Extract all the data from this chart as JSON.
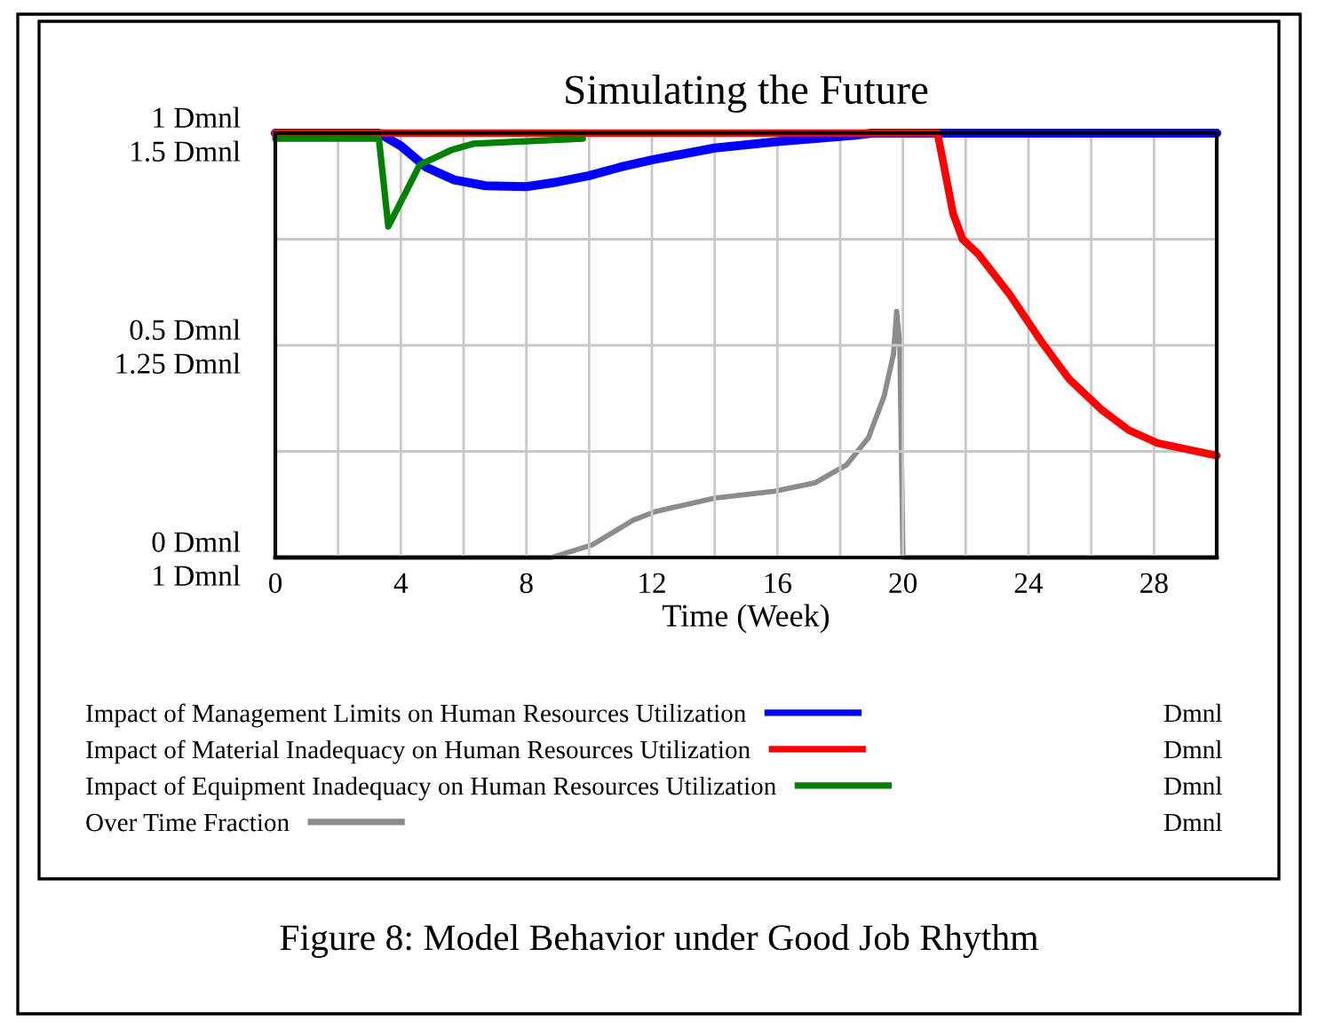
{
  "chart_data": {
    "type": "line",
    "title": "Simulating the Future",
    "xlabel": "Time (Week)",
    "xlim": [
      0,
      30
    ],
    "xticks": [
      0,
      {
        "value": 2,
        "label": null
      },
      4,
      {
        "value": 6,
        "label": null
      },
      8,
      {
        "value": 10,
        "label": null
      },
      12,
      {
        "value": 14,
        "label": null
      },
      16,
      {
        "value": 18,
        "label": null
      },
      20,
      {
        "value": 22,
        "label": null
      },
      24,
      {
        "value": 26,
        "label": null
      },
      28
    ],
    "ylim": [
      0,
      1
    ],
    "yticks": [
      {
        "value": 0,
        "label": "0 Dmnl"
      },
      {
        "value": 0.25,
        "label": null
      },
      {
        "value": 0.5,
        "label": "0.5 Dmnl"
      },
      {
        "value": 0.75,
        "label": null
      },
      {
        "value": 1,
        "label": "1 Dmnl"
      }
    ],
    "y2lim": [
      1,
      1.5
    ],
    "y2ticks": [
      {
        "value": 1,
        "label": "1 Dmnl"
      },
      {
        "value": 1.25,
        "label": "1.25 Dmnl"
      },
      {
        "value": 1.5,
        "label": "1.5 Dmnl"
      }
    ],
    "grid": true,
    "legend": "bottom",
    "marker": "none",
    "line_style": "solid",
    "series": [
      {
        "name": "Impact of Management Limits on Human Resources Utilization",
        "color": "#0000ff",
        "x": [
          0,
          3.3,
          4,
          4.8,
          5.7,
          6.7,
          8,
          9,
          10,
          11,
          12,
          14,
          16,
          18.5,
          19,
          30
        ],
        "values": [
          1,
          1,
          0.97,
          0.92,
          0.89,
          0.876,
          0.874,
          0.885,
          0.9,
          0.92,
          0.937,
          0.965,
          0.98,
          0.995,
          1,
          1
        ]
      },
      {
        "name": "Impact of Material Inadequacy on Human Resources Utilization",
        "color": "#ff0000",
        "x": [
          0,
          21.1,
          21.3,
          21.6,
          21.9,
          22.4,
          23.4,
          24.4,
          25.3,
          26.3,
          27.2,
          28.1,
          30
        ],
        "values": [
          1,
          1,
          0.925,
          0.81,
          0.75,
          0.715,
          0.62,
          0.51,
          0.42,
          0.35,
          0.3,
          0.27,
          0.24
        ]
      },
      {
        "name": "Impact of Equipment Inadequacy on Human Resources Utilization",
        "color": "#008000",
        "x": [
          0,
          3.3,
          3.6,
          4.6,
          5.6,
          6.3,
          9.8
        ],
        "values": [
          0.987,
          0.987,
          0.78,
          0.925,
          0.96,
          0.975,
          0.987
        ]
      },
      {
        "name": "Over Time Fraction",
        "color": "#8c8c8c",
        "axis": "y2",
        "x": [
          0,
          8.8,
          10.1,
          11.4,
          12.1,
          14,
          15.9,
          17.2,
          18.2,
          18.9,
          19.4,
          19.7,
          19.8,
          19.9,
          20,
          30
        ],
        "values": [
          1,
          1,
          1.015,
          1.044,
          1.054,
          1.07,
          1.078,
          1.088,
          1.109,
          1.141,
          1.19,
          1.24,
          1.29,
          1.25,
          1,
          1
        ]
      }
    ],
    "annotations": [
      "Dmnl",
      "Dmnl",
      "Dmnl",
      "Dmnl",
      "Figure 8: Model Behavior under Good Job Rhythm"
    ]
  }
}
